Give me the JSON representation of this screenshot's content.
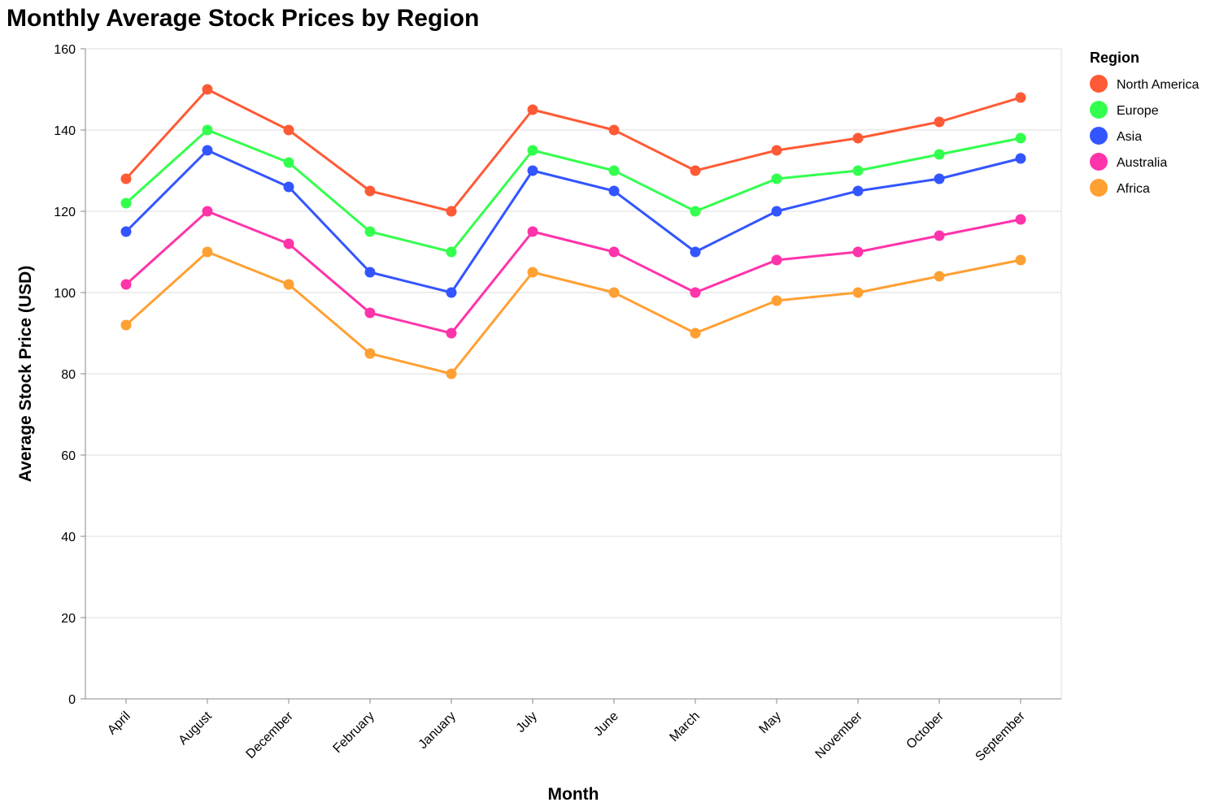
{
  "chart_data": {
    "type": "line",
    "title": "Monthly Average Stock Prices by Region",
    "xlabel": "Month",
    "ylabel": "Average Stock Price (USD)",
    "ylim": [
      0,
      160
    ],
    "yticks": [
      0,
      20,
      40,
      60,
      80,
      100,
      120,
      140,
      160
    ],
    "grid": "horizontal",
    "legend_title": "Region",
    "legend_position": "right",
    "categories": [
      "April",
      "August",
      "December",
      "February",
      "January",
      "July",
      "June",
      "March",
      "May",
      "November",
      "October",
      "September"
    ],
    "series": [
      {
        "name": "North America",
        "color": "#ff5a36",
        "values": [
          128,
          150,
          140,
          125,
          120,
          145,
          140,
          130,
          135,
          138,
          142,
          148
        ]
      },
      {
        "name": "Europe",
        "color": "#33ff4d",
        "values": [
          122,
          140,
          132,
          115,
          110,
          135,
          130,
          120,
          128,
          130,
          134,
          138
        ]
      },
      {
        "name": "Asia",
        "color": "#3355ff",
        "values": [
          115,
          135,
          126,
          105,
          100,
          130,
          125,
          110,
          120,
          125,
          128,
          133
        ]
      },
      {
        "name": "Australia",
        "color": "#ff33aa",
        "values": [
          102,
          120,
          112,
          95,
          90,
          115,
          110,
          100,
          108,
          110,
          114,
          118
        ]
      },
      {
        "name": "Africa",
        "color": "#ffa033",
        "values": [
          92,
          110,
          102,
          85,
          80,
          105,
          100,
          90,
          98,
          100,
          104,
          108
        ]
      }
    ]
  }
}
